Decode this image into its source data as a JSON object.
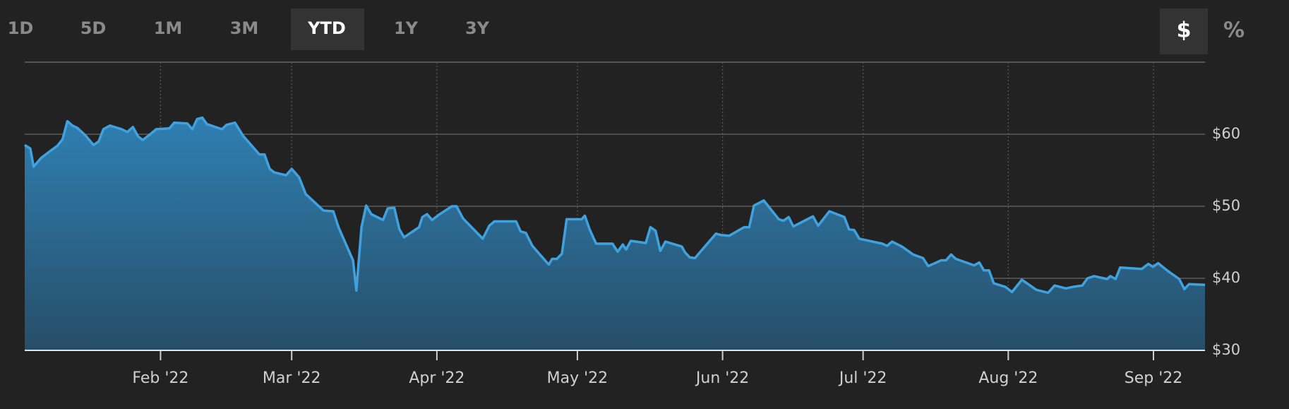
{
  "range_tabs": [
    "1D",
    "5D",
    "1M",
    "3M",
    "YTD",
    "1Y",
    "3Y"
  ],
  "unit_toggles": [
    "$",
    "%"
  ],
  "chart_data": {
    "type": "area",
    "x": [
      2.0,
      3.2,
      3.9,
      5.5,
      7.3,
      9.0,
      10.1,
      11.1,
      12.2,
      13.2,
      15.0,
      16.7,
      17.8,
      18.8,
      20.2,
      22.7,
      23.9,
      25.1,
      26.2,
      27.2,
      29.0,
      30.1,
      32.9,
      33.9,
      36.7,
      37.8,
      38.8,
      39.9,
      40.9,
      44.1,
      45.1,
      46.9,
      48.6,
      52.1,
      53.2,
      54.3,
      55.3,
      57.8,
      59.0,
      60.6,
      62.0,
      65.8,
      67.9,
      69.0,
      72.1,
      72.8,
      73.9,
      74.9,
      76.0,
      78.5,
      79.5,
      80.9,
      82.0,
      83.0,
      86.2,
      86.9,
      87.9,
      89.0,
      90.4,
      93.2,
      94.2,
      95.6,
      99.8,
      101.2,
      102.3,
      106.9,
      107.9,
      109.0,
      110.4,
      113.9,
      114.6,
      115.6,
      116.7,
      117.7,
      120.9,
      121.6,
      122.6,
      124.0,
      127.5,
      128.6,
      129.7,
      130.4,
      131.4,
      134.6,
      135.6,
      136.7,
      137.7,
      138.8,
      142.3,
      143.0,
      144.0,
      145.1,
      146.8,
      149.6,
      150.7,
      152.4,
      155.6,
      156.7,
      157.7,
      159.8,
      163.0,
      164.0,
      165.1,
      166.1,
      170.3,
      171.4,
      173.8,
      177.0,
      178.0,
      179.1,
      180.2,
      181.6,
      185.1,
      186.1,
      187.2,
      189.3,
      191.7,
      193.8,
      194.9,
      197.7,
      198.7,
      199.8,
      200.8,
      204.7,
      205.8,
      206.8,
      207.9,
      208.9,
      211.4,
      212.8,
      214.9,
      218.0,
      220.5,
      221.9,
      224.3,
      225.7,
      227.8,
      228.9,
      230.3,
      233.1,
      233.8,
      234.9,
      235.9,
      240.5,
      241.9,
      242.9,
      244.0,
      246.1,
      248.5,
      249.6,
      250.6,
      254.0
    ],
    "values": [
      58.5,
      58.0,
      55.5,
      56.7,
      57.6,
      58.4,
      59.3,
      61.8,
      61.2,
      60.9,
      59.8,
      58.5,
      59.0,
      60.7,
      61.2,
      60.7,
      60.3,
      61.0,
      59.7,
      59.2,
      60.1,
      60.7,
      60.8,
      61.6,
      61.5,
      60.7,
      62.1,
      62.3,
      61.4,
      60.7,
      61.3,
      61.6,
      59.8,
      57.2,
      57.2,
      55.2,
      54.7,
      54.3,
      55.2,
      54.0,
      51.7,
      49.4,
      49.3,
      47.1,
      42.5,
      38.3,
      47.1,
      50.1,
      48.9,
      48.1,
      49.7,
      49.8,
      46.8,
      45.7,
      47.1,
      48.5,
      48.9,
      48.1,
      48.8,
      50.0,
      50.0,
      48.3,
      45.5,
      47.3,
      47.9,
      47.9,
      46.5,
      46.3,
      44.5,
      41.9,
      42.7,
      42.7,
      43.4,
      48.2,
      48.2,
      48.7,
      46.8,
      44.8,
      44.8,
      43.7,
      44.7,
      44.0,
      45.2,
      44.9,
      47.1,
      46.6,
      43.8,
      45.1,
      44.4,
      43.6,
      42.9,
      42.8,
      44.1,
      46.2,
      46.0,
      45.9,
      47.1,
      47.1,
      50.1,
      50.8,
      48.2,
      48.0,
      48.5,
      47.2,
      48.6,
      47.3,
      49.3,
      48.5,
      46.8,
      46.7,
      45.5,
      45.3,
      44.8,
      44.5,
      45.1,
      44.4,
      43.3,
      42.8,
      41.7,
      42.5,
      42.5,
      43.3,
      42.7,
      41.8,
      42.2,
      41.1,
      41.1,
      39.3,
      38.8,
      38.1,
      39.8,
      38.4,
      38.0,
      39.0,
      38.6,
      38.8,
      39.0,
      40.0,
      40.3,
      39.9,
      40.3,
      39.9,
      41.5,
      41.3,
      42.0,
      41.6,
      42.1,
      41.0,
      39.9,
      38.5,
      39.2,
      39.1
    ],
    "color": "#3fa2de",
    "xlim": [
      2,
      254
    ],
    "xticks": [
      {
        "value": 31,
        "label": "Feb '22"
      },
      {
        "value": 59,
        "label": "Mar '22"
      },
      {
        "value": 90,
        "label": "Apr '22"
      },
      {
        "value": 120,
        "label": "May '22"
      },
      {
        "value": 151,
        "label": "Jun '22"
      },
      {
        "value": 181,
        "label": "Jul '22"
      },
      {
        "value": 212,
        "label": "Aug '22"
      },
      {
        "value": 243,
        "label": "Sep '22"
      }
    ],
    "ylim": [
      30,
      70
    ],
    "yticks": [
      {
        "value": 30,
        "label": "$30"
      },
      {
        "value": 40,
        "label": "$40"
      },
      {
        "value": 50,
        "label": "$50"
      },
      {
        "value": 60,
        "label": "$60"
      }
    ],
    "grid": true
  }
}
